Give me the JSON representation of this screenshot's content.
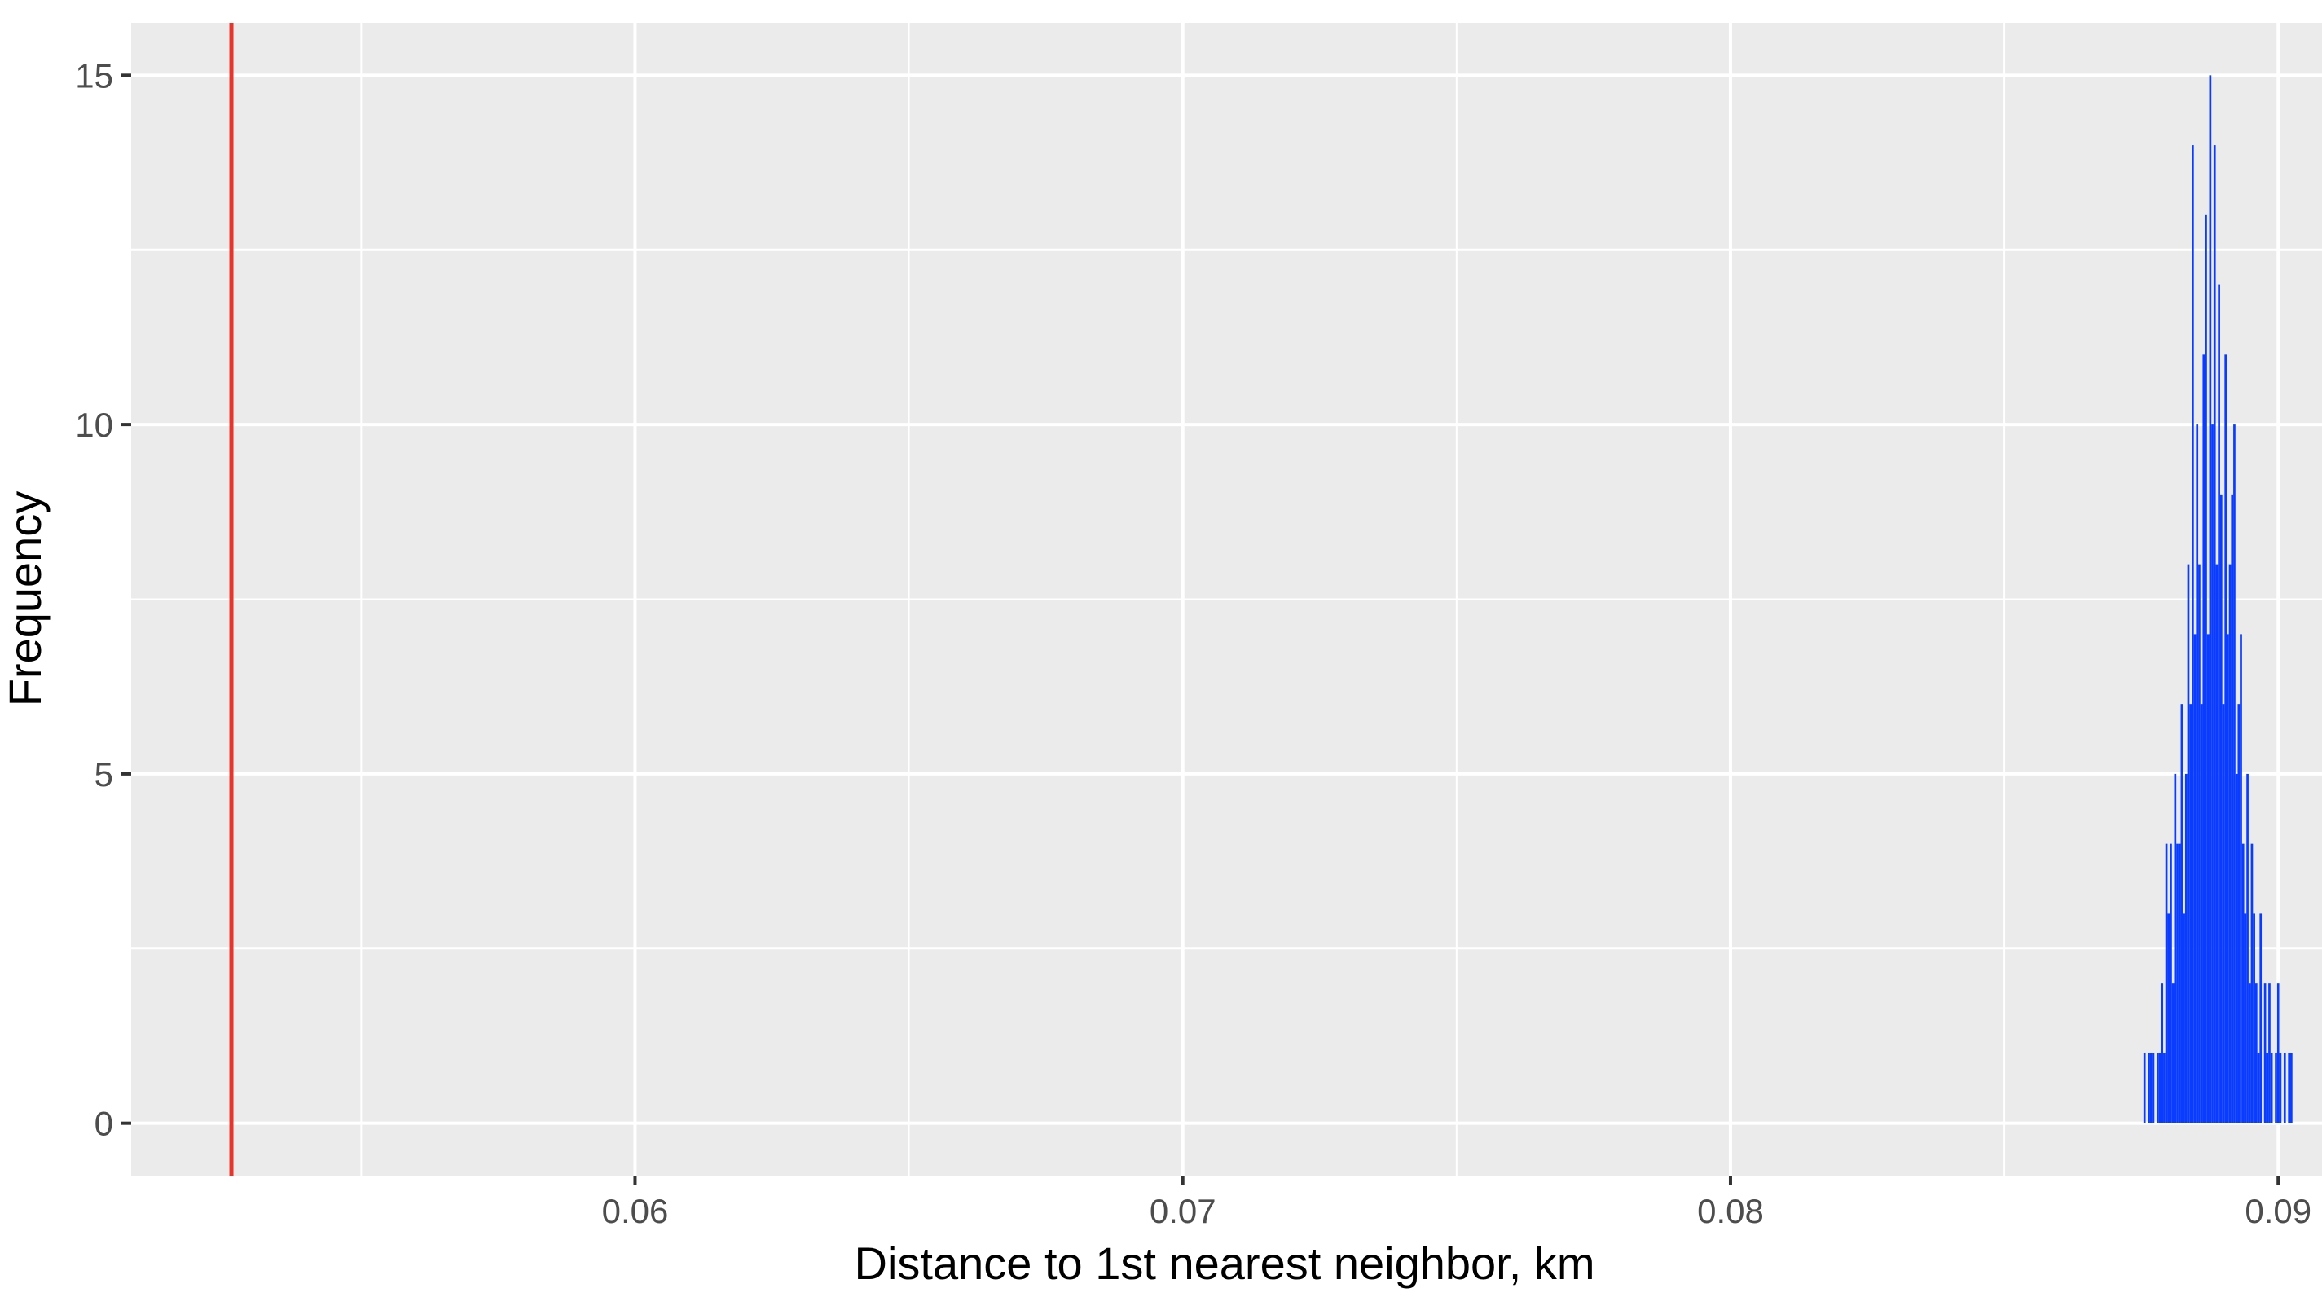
{
  "chart_data": {
    "type": "bar",
    "title": "",
    "xlabel": "Distance to 1st nearest neighbor, km",
    "ylabel": "Frequency",
    "xlim": [
      0.0508,
      0.0908
    ],
    "ylim": [
      -0.75,
      15.75
    ],
    "x_ticks": [
      0.06,
      0.07,
      0.08,
      0.09
    ],
    "x_tick_labels": [
      "0.06",
      "0.07",
      "0.08",
      "0.09"
    ],
    "y_ticks": [
      0,
      5,
      10,
      15
    ],
    "y_tick_labels": [
      "0",
      "5",
      "10",
      "15"
    ],
    "grid": true,
    "panel_background": "#ebebeb",
    "grid_color": "#ffffff",
    "bar_color": "#0a3cff",
    "reference_line": {
      "x": 0.05263,
      "color": "#e8342a"
    },
    "bin_width": 4e-05,
    "x": [
      0.08756,
      0.0876,
      0.08764,
      0.08768,
      0.08772,
      0.08776,
      0.0878,
      0.08784,
      0.08788,
      0.08792,
      0.08796,
      0.088,
      0.08804,
      0.08808,
      0.08812,
      0.08816,
      0.0882,
      0.08824,
      0.08828,
      0.08832,
      0.08836,
      0.0884,
      0.08844,
      0.08848,
      0.08852,
      0.08856,
      0.0886,
      0.08864,
      0.08868,
      0.08872,
      0.08876,
      0.0888,
      0.08884,
      0.08888,
      0.08892,
      0.08896,
      0.089,
      0.08904,
      0.08908,
      0.08912,
      0.08916,
      0.0892,
      0.08924,
      0.08928,
      0.08932,
      0.08936,
      0.0894,
      0.08944,
      0.08948,
      0.08952,
      0.08956,
      0.0896,
      0.08964,
      0.08968,
      0.08972,
      0.08976,
      0.0898,
      0.08984,
      0.08988,
      0.08992,
      0.08996,
      0.09,
      0.09004,
      0.09008,
      0.09012,
      0.09016,
      0.0902,
      0.09024
    ],
    "values": [
      1,
      0,
      1,
      1,
      1,
      0,
      1,
      1,
      2,
      1,
      4,
      3,
      4,
      2,
      5,
      4,
      4,
      6,
      3,
      5,
      8,
      6,
      14,
      7,
      10,
      8,
      6,
      11,
      13,
      7,
      15,
      10,
      14,
      8,
      12,
      9,
      6,
      11,
      7,
      8,
      9,
      10,
      5,
      6,
      7,
      4,
      3,
      5,
      2,
      4,
      3,
      2,
      1,
      3,
      0,
      2,
      1,
      2,
      1,
      0,
      1,
      2,
      1,
      0,
      1,
      0,
      1,
      1
    ]
  }
}
